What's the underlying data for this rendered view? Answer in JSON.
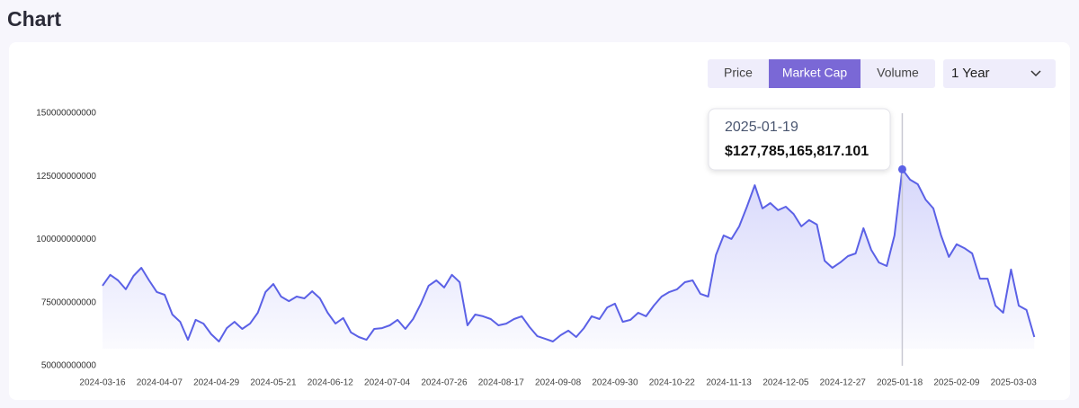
{
  "header": {
    "title": "Chart"
  },
  "controls": {
    "tabs": [
      "Price",
      "Market Cap",
      "Volume"
    ],
    "active_tab": 1,
    "range": "1 Year"
  },
  "chart_data": {
    "type": "area",
    "color": "#5b61e6",
    "grid": false,
    "ylim": [
      50000000000,
      150000000000
    ],
    "yticks": [
      50000000000,
      75000000000,
      100000000000,
      125000000000,
      150000000000
    ],
    "xticks": [
      "2024-03-16",
      "2024-04-07",
      "2024-04-29",
      "2024-05-21",
      "2024-06-12",
      "2024-07-04",
      "2024-07-26",
      "2024-08-17",
      "2024-09-08",
      "2024-09-30",
      "2024-10-22",
      "2024-11-13",
      "2024-12-05",
      "2024-12-27",
      "2025-01-18",
      "2025-02-09",
      "2025-03-03"
    ],
    "x": [
      "2024-03-16",
      "2024-03-19",
      "2024-03-22",
      "2024-03-25",
      "2024-03-28",
      "2024-03-31",
      "2024-04-03",
      "2024-04-06",
      "2024-04-09",
      "2024-04-12",
      "2024-04-15",
      "2024-04-18",
      "2024-04-21",
      "2024-04-24",
      "2024-04-27",
      "2024-04-30",
      "2024-05-03",
      "2024-05-06",
      "2024-05-09",
      "2024-05-12",
      "2024-05-15",
      "2024-05-18",
      "2024-05-21",
      "2024-05-24",
      "2024-05-27",
      "2024-05-30",
      "2024-06-02",
      "2024-06-05",
      "2024-06-08",
      "2024-06-11",
      "2024-06-14",
      "2024-06-17",
      "2024-06-20",
      "2024-06-23",
      "2024-06-26",
      "2024-06-29",
      "2024-07-02",
      "2024-07-05",
      "2024-07-08",
      "2024-07-11",
      "2024-07-14",
      "2024-07-17",
      "2024-07-20",
      "2024-07-23",
      "2024-07-26",
      "2024-07-29",
      "2024-08-01",
      "2024-08-04",
      "2024-08-07",
      "2024-08-10",
      "2024-08-13",
      "2024-08-16",
      "2024-08-19",
      "2024-08-22",
      "2024-08-25",
      "2024-08-28",
      "2024-08-31",
      "2024-09-03",
      "2024-09-06",
      "2024-09-09",
      "2024-09-12",
      "2024-09-15",
      "2024-09-18",
      "2024-09-21",
      "2024-09-24",
      "2024-09-27",
      "2024-09-30",
      "2024-10-03",
      "2024-10-06",
      "2024-10-09",
      "2024-10-12",
      "2024-10-15",
      "2024-10-18",
      "2024-10-21",
      "2024-10-24",
      "2024-10-27",
      "2024-10-30",
      "2024-11-02",
      "2024-11-05",
      "2024-11-08",
      "2024-11-11",
      "2024-11-14",
      "2024-11-17",
      "2024-11-20",
      "2024-11-23",
      "2024-11-26",
      "2024-11-29",
      "2024-12-02",
      "2024-12-05",
      "2024-12-08",
      "2024-12-11",
      "2024-12-14",
      "2024-12-17",
      "2024-12-20",
      "2024-12-23",
      "2024-12-26",
      "2024-12-29",
      "2025-01-01",
      "2025-01-04",
      "2025-01-07",
      "2025-01-10",
      "2025-01-13",
      "2025-01-16",
      "2025-01-19",
      "2025-01-22",
      "2025-01-25",
      "2025-01-28",
      "2025-01-31",
      "2025-02-03",
      "2025-02-06",
      "2025-02-09",
      "2025-02-12",
      "2025-02-15",
      "2025-02-18",
      "2025-02-21",
      "2025-02-24",
      "2025-02-27",
      "2025-03-02",
      "2025-03-05",
      "2025-03-08",
      "2025-03-11"
    ],
    "values": [
      81700000000,
      86000000000,
      83800000000,
      80300000000,
      85600000000,
      88800000000,
      83800000000,
      79200000000,
      78100000000,
      70300000000,
      67400000000,
      60300000000,
      68200000000,
      66700000000,
      62500000000,
      59600000000,
      64900000000,
      67400000000,
      64600000000,
      66700000000,
      71000000000,
      79200000000,
      82400000000,
      77400000000,
      75600000000,
      77400000000,
      76700000000,
      79500000000,
      76700000000,
      71000000000,
      66700000000,
      68900000000,
      63200000000,
      61400000000,
      60300000000,
      64600000000,
      64900000000,
      66000000000,
      68200000000,
      64600000000,
      68500000000,
      74600000000,
      81700000000,
      83800000000,
      81000000000,
      86000000000,
      83100000000,
      66000000000,
      70300000000,
      69600000000,
      68500000000,
      66000000000,
      66700000000,
      68500000000,
      69600000000,
      65300000000,
      61700000000,
      60700000000,
      59600000000,
      62100000000,
      63900000000,
      61400000000,
      64900000000,
      69600000000,
      68500000000,
      73100000000,
      74600000000,
      67400000000,
      68200000000,
      71000000000,
      69600000000,
      73800000000,
      77400000000,
      79200000000,
      80300000000,
      83100000000,
      83800000000,
      78500000000,
      77400000000,
      93800000000,
      101600000000,
      100200000000,
      105200000000,
      113000000000,
      121500000000,
      112300000000,
      114400000000,
      111600000000,
      113000000000,
      110100000000,
      105200000000,
      107700000000,
      105900000000,
      91600000000,
      88800000000,
      90900000000,
      93400000000,
      94500000000,
      104500000000,
      95900000000,
      90900000000,
      89500000000,
      101600000000,
      127785165817.101,
      123700000000,
      121900000000,
      115800000000,
      112300000000,
      101600000000,
      93100000000,
      98100000000,
      96600000000,
      94500000000,
      84500000000,
      84500000000,
      73800000000,
      71000000000,
      88100000000,
      73800000000,
      72100000000,
      61400000000
    ],
    "tooltip": {
      "x": "2025-01-19",
      "value": 127785165817.101,
      "label": "$127,785,165,817.101"
    }
  }
}
